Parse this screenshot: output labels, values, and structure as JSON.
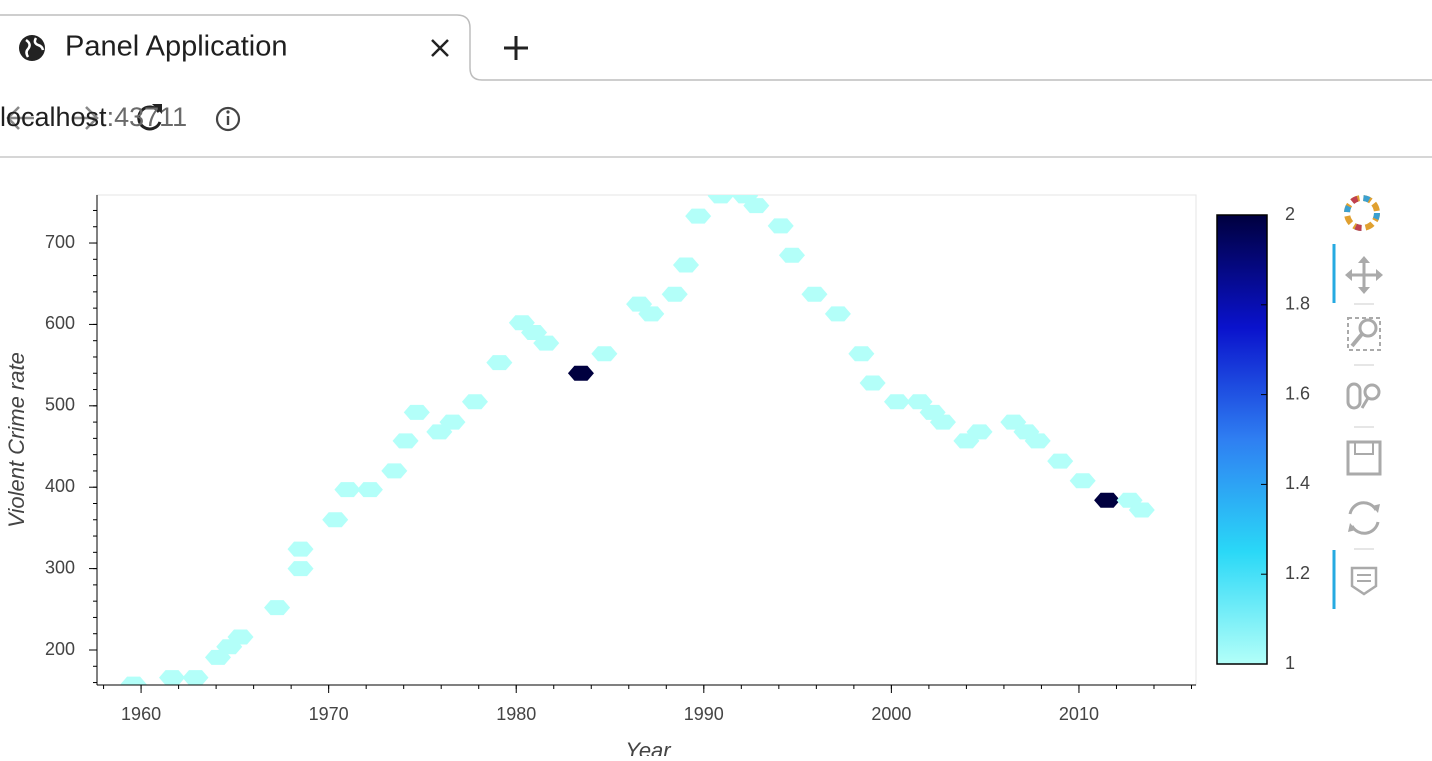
{
  "browser": {
    "tab_title": "Panel Application",
    "url_host": "localhost",
    "url_port": ":43711"
  },
  "chart_data": {
    "type": "hexbin",
    "x_label": "Year",
    "y_label": "Violent Crime rate",
    "x": [
      1959.6,
      1961.65,
      1962.9,
      1964.1,
      1964.7,
      1965.3,
      1967.25,
      1968.5,
      1968.5,
      1970.35,
      1971.0,
      1972.2,
      1973.5,
      1974.1,
      1974.7,
      1975.9,
      1976.6,
      1977.8,
      1979.1,
      1980.3,
      1980.95,
      1981.6,
      1983.45,
      1984.7,
      1986.55,
      1987.2,
      1988.45,
      1989.05,
      1989.7,
      1990.9,
      1992.2,
      1992.8,
      1994.1,
      1994.7,
      1995.9,
      1997.15,
      1998.4,
      1999.0,
      2000.3,
      2001.5,
      2002.2,
      2002.75,
      2004.0,
      2004.7,
      2006.5,
      2007.2,
      2007.8,
      2009.0,
      2010.2,
      2011.5,
      2012.7,
      2013.35
    ],
    "y": [
      158,
      166,
      166,
      191,
      204,
      216,
      252,
      300,
      324,
      360,
      397,
      397,
      420,
      457,
      492,
      468,
      480,
      505,
      553,
      602,
      590,
      577,
      540,
      564,
      625,
      613,
      637,
      673,
      733,
      758,
      758,
      746,
      721,
      685,
      637,
      613,
      564,
      528,
      505,
      505,
      492,
      480,
      457,
      468,
      480,
      468,
      457,
      432,
      408,
      384,
      384,
      372
    ],
    "counts": [
      1,
      1,
      1,
      1,
      1,
      1,
      1,
      1,
      1,
      1,
      1,
      1,
      1,
      1,
      1,
      1,
      1,
      1,
      1,
      1,
      1,
      1,
      2,
      1,
      1,
      1,
      1,
      1,
      1,
      1,
      1,
      1,
      1,
      1,
      1,
      1,
      1,
      1,
      1,
      1,
      1,
      1,
      1,
      1,
      1,
      1,
      1,
      1,
      1,
      2,
      1,
      1
    ],
    "xlim": [
      1957.65,
      2016.24
    ],
    "ylim": [
      157,
      759
    ],
    "xticks": [
      1960,
      1970,
      1980,
      1990,
      2000,
      2010
    ],
    "yticks": [
      200,
      300,
      400,
      500,
      600,
      700
    ],
    "clim": [
      1,
      2
    ],
    "cticks": [
      1,
      1.2,
      1.4,
      1.6,
      1.8,
      2
    ],
    "colormap": [
      "#b3fff9",
      "#2ad8f7",
      "#2f7ff2",
      "#0a12cc",
      "#00003f"
    ]
  }
}
